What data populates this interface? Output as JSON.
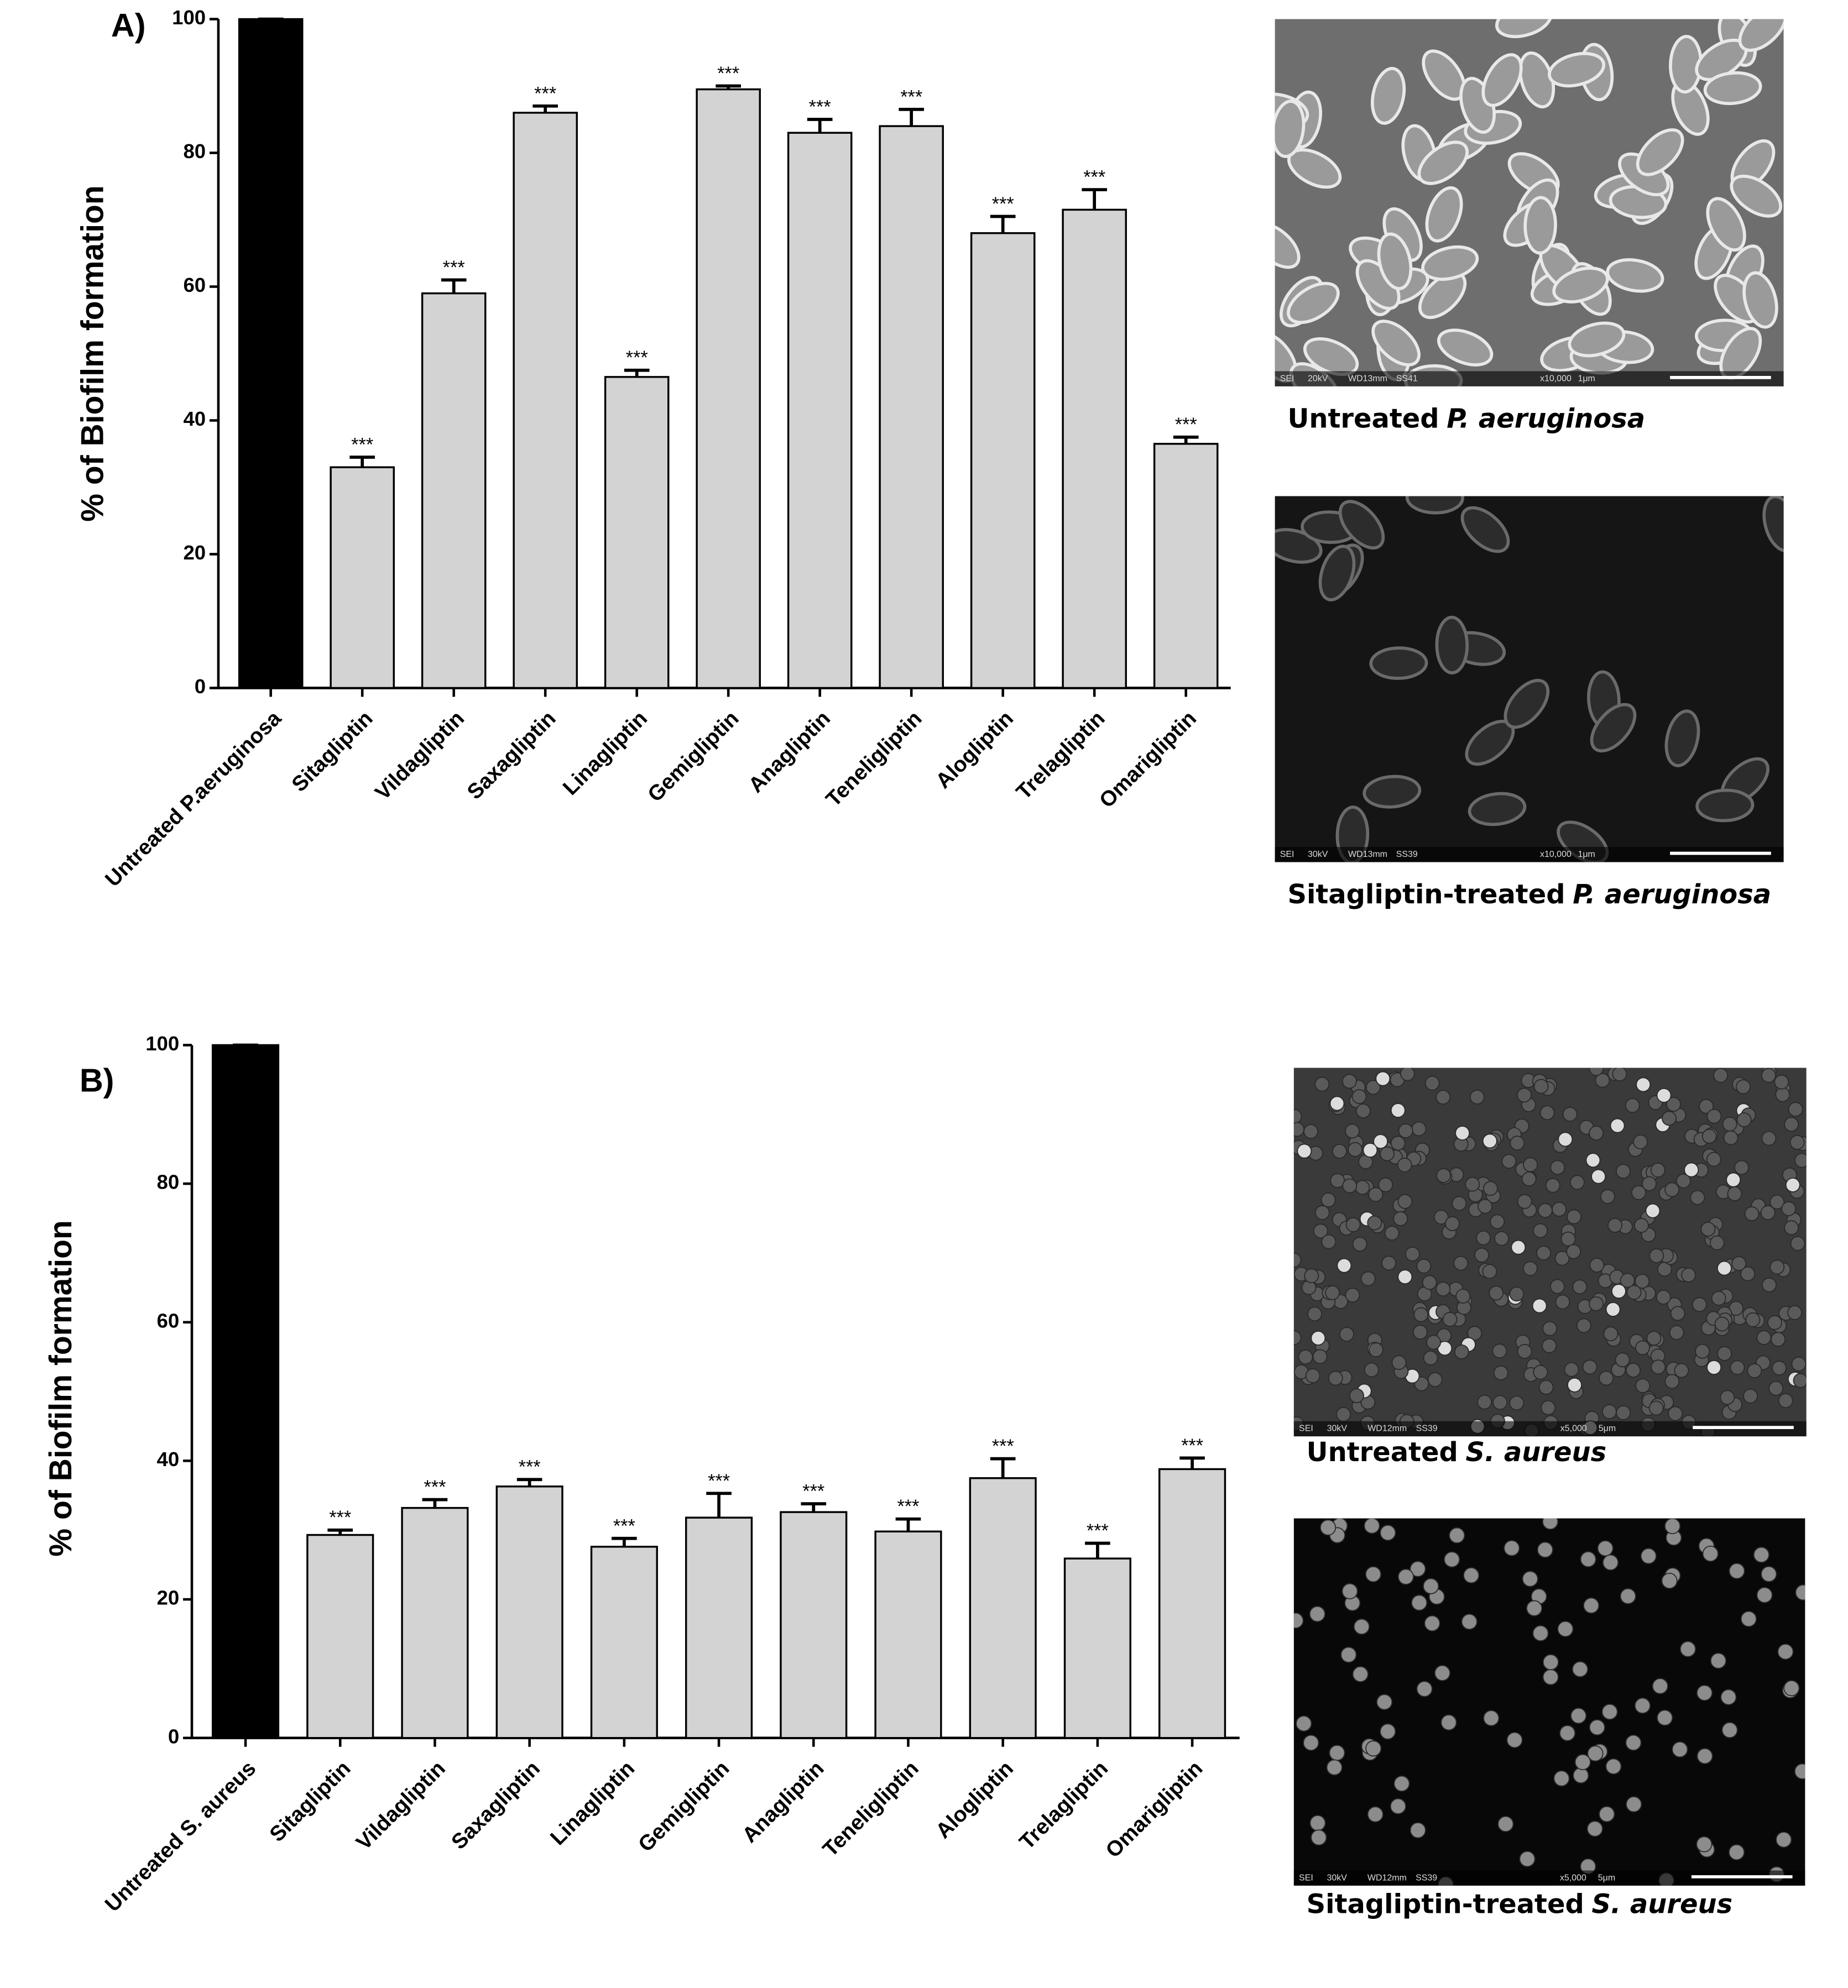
{
  "chart_data": [
    {
      "type": "bar",
      "panel": "A)",
      "y_label": "% of Biofilm formation",
      "categories": [
        "Untreated P.aeruginosa",
        "Sitagliptin",
        "Vildagliptin",
        "Saxagliptin",
        "Linagliptin",
        "Gemigliptin",
        "Anagliptin",
        "Teneligliptin",
        "Alogliptin",
        "Trelagliptin",
        "Omarigliptin"
      ],
      "values": [
        100,
        33,
        59,
        86,
        46.5,
        89.5,
        83,
        84,
        68,
        71.5,
        36.5
      ],
      "errors": [
        0,
        1.5,
        2,
        1,
        1,
        0.5,
        2,
        2.5,
        2.5,
        3,
        1
      ],
      "annotations": [
        null,
        "***",
        "***",
        "***",
        "***",
        "***",
        "***",
        "***",
        "***",
        "***",
        "***"
      ],
      "colors": [
        "#000000",
        "#d3d3d3",
        "#d3d3d3",
        "#d3d3d3",
        "#d3d3d3",
        "#d3d3d3",
        "#d3d3d3",
        "#d3d3d3",
        "#d3d3d3",
        "#d3d3d3",
        "#d3d3d3"
      ],
      "ylim": [
        0,
        100
      ],
      "yticks": [
        0,
        20,
        40,
        60,
        80,
        100
      ],
      "grid": false
    },
    {
      "type": "bar",
      "panel": "B)",
      "y_label": "% of Biofilm formation",
      "categories": [
        "Untreated S. aureus",
        "Sitagliptin",
        "Vildagliptin",
        "Saxagliptin",
        "Linagliptin",
        "Gemigliptin",
        "Anagliptin",
        "Teneligliptin",
        "Alogliptin",
        "Trelagliptin",
        "Omarigliptin"
      ],
      "values": [
        100,
        29.3,
        33.2,
        36.3,
        27.6,
        31.8,
        32.6,
        29.8,
        37.5,
        25.9,
        38.8
      ],
      "errors": [
        0,
        0.7,
        1.2,
        1,
        1.2,
        3.5,
        1.2,
        1.8,
        2.8,
        2.2,
        1.6
      ],
      "annotations": [
        null,
        "***",
        "***",
        "***",
        "***",
        "***",
        "***",
        "***",
        "***",
        "***",
        "***"
      ],
      "colors": [
        "#000000",
        "#d3d3d3",
        "#d3d3d3",
        "#d3d3d3",
        "#d3d3d3",
        "#d3d3d3",
        "#d3d3d3",
        "#d3d3d3",
        "#d3d3d3",
        "#d3d3d3",
        "#d3d3d3"
      ],
      "ylim": [
        0,
        100
      ],
      "yticks": [
        0,
        20,
        40,
        60,
        80,
        100
      ],
      "grid": false
    }
  ],
  "micrographs": [
    {
      "lead": "Untreated",
      "species": "P. aeruginosa",
      "info": [
        "SEI",
        "20kV",
        "WD13mm",
        "SS41",
        "x10,000",
        "1μm"
      ]
    },
    {
      "lead": "Sitagliptin-treated",
      "species": "P. aeruginosa",
      "info": [
        "SEI",
        "30kV",
        "WD13mm",
        "SS39",
        "x10,000",
        "1μm"
      ]
    },
    {
      "lead": "Untreated",
      "species": "S. aureus",
      "info": [
        "SEI",
        "30kV",
        "WD12mm",
        "SS39",
        "x5,000",
        "5μm"
      ]
    },
    {
      "lead": "Sitagliptin-treated",
      "species": "S. aureus",
      "info": [
        "SEI",
        "30kV",
        "WD12mm",
        "SS39",
        "x5,000",
        "5μm"
      ]
    }
  ]
}
